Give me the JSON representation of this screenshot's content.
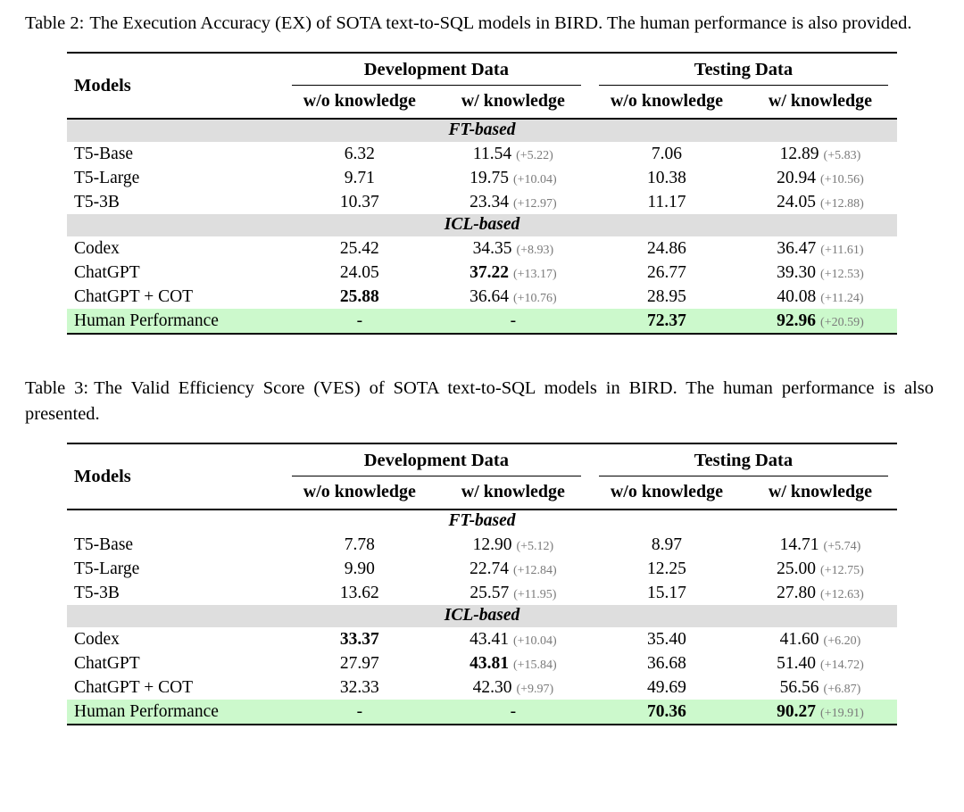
{
  "colors": {
    "section_band": "#dedede",
    "human_row_highlight": "#ccf9cc",
    "delta_text": "#7a7a7a",
    "rule": "#000000"
  },
  "tables": [
    {
      "caption": {
        "label": "Table 2:",
        "text": "The Execution Accuracy (EX) of SOTA text-to-SQL models in BIRD. The human performance is also provided."
      },
      "header": {
        "models": "Models",
        "groups": [
          "Development Data",
          "Testing Data"
        ],
        "subcolumns": [
          "w/o knowledge",
          "w/ knowledge",
          "w/o knowledge",
          "w/ knowledge"
        ]
      },
      "rows": [
        {
          "type": "section",
          "label": "FT-based",
          "bg": "gray"
        },
        {
          "type": "data",
          "model": "T5-Base",
          "cells": [
            {
              "v": "6.32"
            },
            {
              "v": "11.54",
              "d": "(+5.22)"
            },
            {
              "v": "7.06"
            },
            {
              "v": "12.89",
              "d": "(+5.83)"
            }
          ]
        },
        {
          "type": "data",
          "model": "T5-Large",
          "cells": [
            {
              "v": "9.71"
            },
            {
              "v": "19.75",
              "d": "(+10.04)"
            },
            {
              "v": "10.38"
            },
            {
              "v": "20.94",
              "d": "(+10.56)"
            }
          ]
        },
        {
          "type": "data",
          "model": "T5-3B",
          "cells": [
            {
              "v": "10.37"
            },
            {
              "v": "23.34",
              "d": "(+12.97)"
            },
            {
              "v": "11.17"
            },
            {
              "v": "24.05",
              "d": "(+12.88)"
            }
          ]
        },
        {
          "type": "section",
          "label": "ICL-based",
          "bg": "gray"
        },
        {
          "type": "data",
          "model": "Codex",
          "cells": [
            {
              "v": "25.42"
            },
            {
              "v": "34.35",
              "d": "(+8.93)"
            },
            {
              "v": "24.86"
            },
            {
              "v": "36.47",
              "d": "(+11.61)"
            }
          ]
        },
        {
          "type": "data",
          "model": "ChatGPT",
          "cells": [
            {
              "v": "24.05"
            },
            {
              "v": "37.22",
              "d": "(+13.17)",
              "b": true
            },
            {
              "v": "26.77"
            },
            {
              "v": "39.30",
              "d": "(+12.53)"
            }
          ]
        },
        {
          "type": "data",
          "model": "ChatGPT + COT",
          "cells": [
            {
              "v": "25.88",
              "b": true
            },
            {
              "v": "36.64",
              "d": "(+10.76)"
            },
            {
              "v": "28.95"
            },
            {
              "v": "40.08",
              "d": "(+11.24)"
            }
          ]
        },
        {
          "type": "data",
          "model": "Human Performance",
          "bg": "green",
          "cells": [
            {
              "v": "-"
            },
            {
              "v": "-"
            },
            {
              "v": "72.37",
              "b": true
            },
            {
              "v": "92.96",
              "d": "(+20.59)",
              "b": true
            }
          ]
        }
      ]
    },
    {
      "caption": {
        "label": "Table 3:",
        "text": "The Valid Efficiency Score (VES) of SOTA text-to-SQL models in BIRD. The human performance is also presented."
      },
      "header": {
        "models": "Models",
        "groups": [
          "Development Data",
          "Testing Data"
        ],
        "subcolumns": [
          "w/o knowledge",
          "w/ knowledge",
          "w/o knowledge",
          "w/ knowledge"
        ]
      },
      "rows": [
        {
          "type": "section",
          "label": "FT-based",
          "bg": "white"
        },
        {
          "type": "data",
          "model": "T5-Base",
          "cells": [
            {
              "v": "7.78"
            },
            {
              "v": "12.90",
              "d": "(+5.12)"
            },
            {
              "v": "8.97"
            },
            {
              "v": "14.71",
              "d": "(+5.74)"
            }
          ]
        },
        {
          "type": "data",
          "model": "T5-Large",
          "cells": [
            {
              "v": "9.90"
            },
            {
              "v": "22.74",
              "d": "(+12.84)"
            },
            {
              "v": "12.25"
            },
            {
              "v": "25.00",
              "d": "(+12.75)"
            }
          ]
        },
        {
          "type": "data",
          "model": "T5-3B",
          "cells": [
            {
              "v": "13.62"
            },
            {
              "v": "25.57",
              "d": "(+11.95)"
            },
            {
              "v": "15.17"
            },
            {
              "v": "27.80",
              "d": "(+12.63)"
            }
          ]
        },
        {
          "type": "section",
          "label": "ICL-based",
          "bg": "gray"
        },
        {
          "type": "data",
          "model": "Codex",
          "cells": [
            {
              "v": "33.37",
              "b": true
            },
            {
              "v": "43.41",
              "d": "(+10.04)"
            },
            {
              "v": "35.40"
            },
            {
              "v": "41.60",
              "d": "(+6.20)"
            }
          ]
        },
        {
          "type": "data",
          "model": "ChatGPT",
          "cells": [
            {
              "v": "27.97"
            },
            {
              "v": "43.81",
              "d": "(+15.84)",
              "b": true
            },
            {
              "v": "36.68"
            },
            {
              "v": "51.40",
              "d": "(+14.72)"
            }
          ]
        },
        {
          "type": "data",
          "model": "ChatGPT + COT",
          "cells": [
            {
              "v": "32.33"
            },
            {
              "v": "42.30",
              "d": "(+9.97)"
            },
            {
              "v": "49.69"
            },
            {
              "v": "56.56",
              "d": "(+6.87)"
            }
          ]
        },
        {
          "type": "data",
          "model": "Human Performance",
          "bg": "green",
          "cells": [
            {
              "v": "-"
            },
            {
              "v": "-"
            },
            {
              "v": "70.36",
              "b": true
            },
            {
              "v": "90.27",
              "d": "(+19.91)",
              "b": true
            }
          ]
        }
      ]
    }
  ]
}
